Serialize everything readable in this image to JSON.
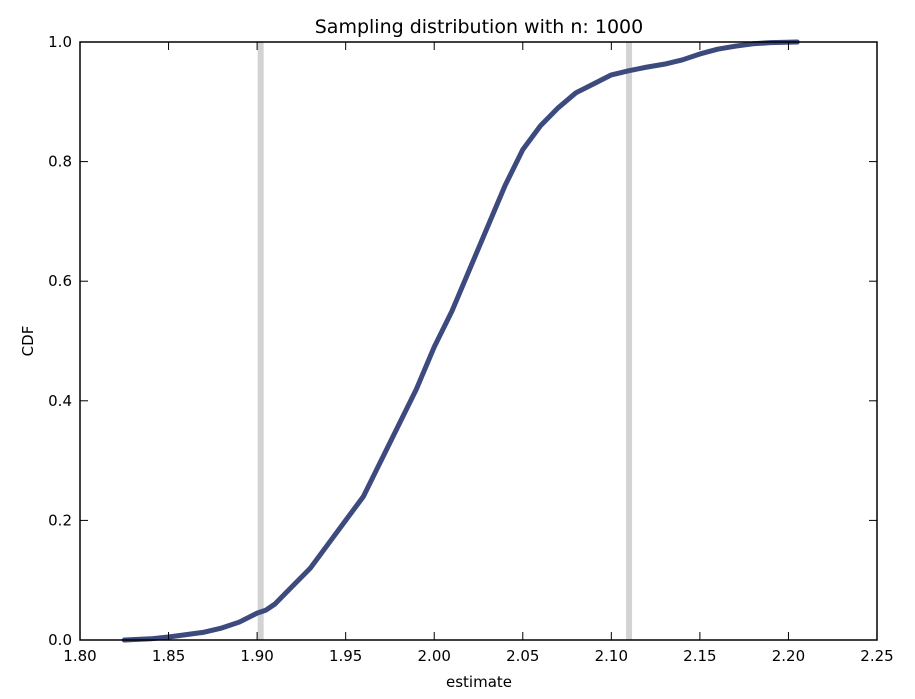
{
  "chart_data": {
    "type": "line",
    "title": "Sampling distribution with n: 1000",
    "xlabel": "estimate",
    "ylabel": "CDF",
    "xlim": [
      1.8,
      2.25
    ],
    "ylim": [
      0.0,
      1.0
    ],
    "xticks": [
      "1.80",
      "1.85",
      "1.90",
      "1.95",
      "2.00",
      "2.05",
      "2.10",
      "2.15",
      "2.20",
      "2.25"
    ],
    "yticks": [
      "0.0",
      "0.2",
      "0.4",
      "0.6",
      "0.8",
      "1.0"
    ],
    "grid": false,
    "legend": "none",
    "series": [
      {
        "color": "#3c4a7e",
        "x": [
          1.825,
          1.84,
          1.85,
          1.86,
          1.87,
          1.88,
          1.89,
          1.9,
          1.905,
          1.91,
          1.92,
          1.93,
          1.94,
          1.95,
          1.96,
          1.97,
          1.98,
          1.99,
          2.0,
          2.01,
          2.02,
          2.03,
          2.04,
          2.05,
          2.06,
          2.07,
          2.08,
          2.09,
          2.1,
          2.11,
          2.12,
          2.13,
          2.14,
          2.15,
          2.16,
          2.17,
          2.18,
          2.19,
          2.205
        ],
        "y": [
          0.0,
          0.002,
          0.005,
          0.009,
          0.013,
          0.02,
          0.03,
          0.045,
          0.05,
          0.06,
          0.09,
          0.12,
          0.16,
          0.2,
          0.24,
          0.3,
          0.36,
          0.42,
          0.49,
          0.55,
          0.62,
          0.69,
          0.76,
          0.82,
          0.86,
          0.89,
          0.915,
          0.93,
          0.945,
          0.952,
          0.958,
          0.963,
          0.97,
          0.98,
          0.988,
          0.993,
          0.997,
          0.999,
          1.0
        ]
      }
    ],
    "vlines": [
      {
        "x": 1.902,
        "color": "#d3d3d3"
      },
      {
        "x": 2.11,
        "color": "#d3d3d3"
      }
    ]
  }
}
